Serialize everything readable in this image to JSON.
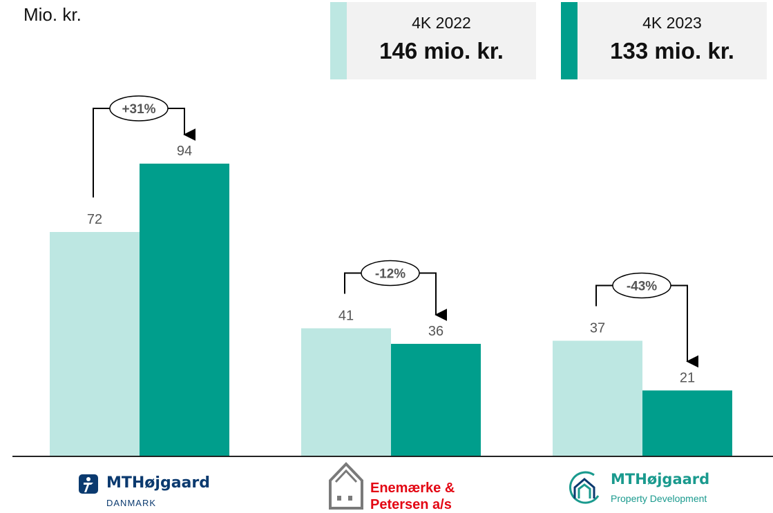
{
  "chart_data": {
    "type": "bar",
    "unit_label": "Mio. kr.",
    "categories": [
      "MTHøjgaard Danmark",
      "Enemærke & Petersen a/s",
      "MTHøjgaard Property Development"
    ],
    "series": [
      {
        "name": "4K 2022",
        "total": "146 mio. kr.",
        "color": "#bde7e2",
        "values": [
          72,
          41,
          37
        ]
      },
      {
        "name": "4K 2023",
        "total": "133 mio. kr.",
        "color": "#009e8c",
        "values": [
          94,
          36,
          21
        ]
      }
    ],
    "changes": [
      "+31%",
      "-12%",
      "-43%"
    ],
    "ylim": [
      0,
      100
    ],
    "grid": false,
    "legend_position": "top-right"
  },
  "logos": {
    "mth_danmark": {
      "name": "MTHøjgaard",
      "sub": "DANMARK",
      "icon": "mth-icon"
    },
    "ep": {
      "line1": "Enemærke &",
      "line2": "Petersen a/s",
      "icon": "house-icon",
      "color": "#e30613"
    },
    "mth_pd": {
      "name": "MTHøjgaard",
      "sub": "Property Development",
      "icon": "house-circle-icon",
      "color": "#1a9a8e"
    }
  }
}
